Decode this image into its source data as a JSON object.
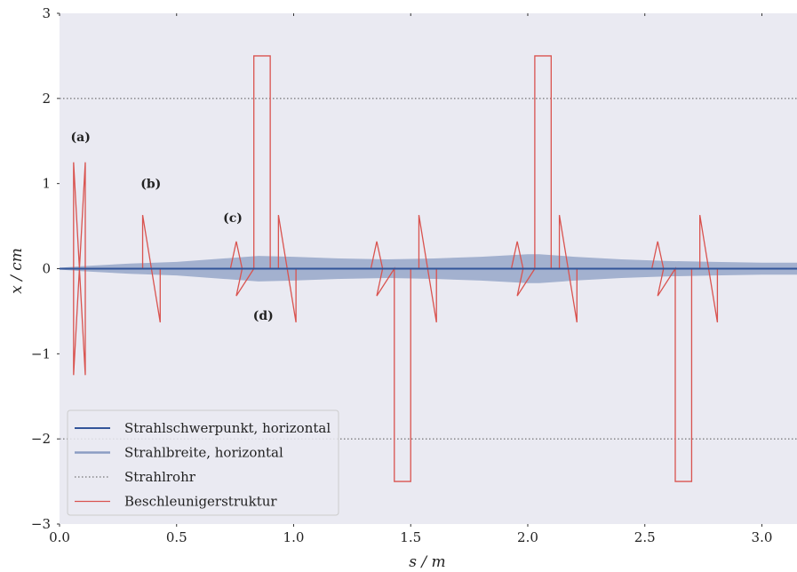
{
  "chart_data": {
    "type": "line",
    "xlabel": "s / m",
    "ylabel": "x / cm",
    "xlim": [
      0.0,
      3.15
    ],
    "ylim": [
      -3,
      3
    ],
    "xticks": [
      0.0,
      0.5,
      1.0,
      1.5,
      2.0,
      2.5,
      3.0
    ],
    "xtick_labels": [
      "0.0",
      "0.5",
      "1.0",
      "1.5",
      "2.0",
      "2.5",
      "3.0"
    ],
    "yticks": [
      -3,
      -2,
      -1,
      0,
      1,
      2,
      3
    ],
    "ytick_labels": [
      "−3",
      "−2",
      "−1",
      "0",
      "1",
      "2",
      "3"
    ],
    "grid": false,
    "background": "#eaeaf2",
    "legend_position": "lower-left",
    "series": [
      {
        "name": "Strahlschwerpunkt, horizontal",
        "kind": "line",
        "color": "#335599",
        "x": [
          0.0,
          3.15
        ],
        "y": [
          0.0,
          0.0
        ]
      },
      {
        "name": "Strahlbreite, horizontal",
        "kind": "band",
        "color": "#8b9dc3",
        "x": [
          0.0,
          0.1,
          0.3,
          0.5,
          0.7,
          0.85,
          1.0,
          1.2,
          1.4,
          1.6,
          1.8,
          2.0,
          2.05,
          2.2,
          2.4,
          2.6,
          2.8,
          3.0,
          3.15
        ],
        "upper": [
          0.01,
          0.03,
          0.06,
          0.08,
          0.12,
          0.15,
          0.14,
          0.12,
          0.11,
          0.12,
          0.14,
          0.17,
          0.17,
          0.14,
          0.11,
          0.09,
          0.08,
          0.07,
          0.07
        ],
        "lower": [
          -0.01,
          -0.03,
          -0.06,
          -0.08,
          -0.12,
          -0.15,
          -0.14,
          -0.12,
          -0.11,
          -0.12,
          -0.14,
          -0.17,
          -0.17,
          -0.14,
          -0.11,
          -0.09,
          -0.08,
          -0.07,
          -0.07
        ]
      },
      {
        "name": "Strahlrohr",
        "kind": "hlines",
        "color": "#555555",
        "y": [
          2,
          -2
        ]
      },
      {
        "name": "Beschleunigerstruktur",
        "kind": "polyline",
        "color": "#d9534f",
        "x": [
          0.0,
          0.06,
          0.06,
          0.11,
          0.11,
          0.06,
          0.06,
          0.11,
          0.11,
          0.355,
          0.355,
          0.43,
          0.43,
          0.755,
          0.73,
          0.755,
          0.78,
          0.755,
          0.83,
          0.83,
          0.9,
          0.9,
          0.935,
          0.935,
          1.01,
          1.01,
          1.355,
          1.33,
          1.355,
          1.38,
          1.355,
          1.43,
          1.43,
          1.5,
          1.5,
          1.535,
          1.535,
          1.61,
          1.61,
          1.955,
          1.93,
          1.955,
          1.98,
          1.955,
          2.03,
          2.03,
          2.1,
          2.1,
          2.135,
          2.135,
          2.21,
          2.21,
          2.555,
          2.53,
          2.555,
          2.58,
          2.555,
          2.63,
          2.63,
          2.7,
          2.7,
          2.735,
          2.735,
          2.81,
          2.81,
          3.15
        ],
        "y": [
          0.0,
          0.0,
          1.25,
          -1.25,
          1.25,
          -1.25,
          0.0,
          0.0,
          0.0,
          0.0,
          0.63,
          -0.63,
          0.0,
          0.0,
          0.0,
          0.32,
          0.0,
          -0.32,
          0.0,
          2.5,
          2.5,
          0.0,
          0.0,
          0.63,
          -0.63,
          0.0,
          0.0,
          0.0,
          0.32,
          0.0,
          -0.32,
          0.0,
          -2.5,
          -2.5,
          0.0,
          0.0,
          0.63,
          -0.63,
          0.0,
          0.0,
          0.0,
          0.32,
          0.0,
          -0.32,
          0.0,
          2.5,
          2.5,
          0.0,
          0.0,
          0.63,
          -0.63,
          0.0,
          0.0,
          0.0,
          0.32,
          0.0,
          -0.32,
          0.0,
          -2.5,
          -2.5,
          0.0,
          0.0,
          0.63,
          -0.63,
          0.0,
          0.0
        ]
      }
    ],
    "annotations": [
      {
        "text": "(a)",
        "x": 0.09,
        "y": 1.55
      },
      {
        "text": "(b)",
        "x": 0.39,
        "y": 1.0
      },
      {
        "text": "(c)",
        "x": 0.74,
        "y": 0.6
      },
      {
        "text": "(d)",
        "x": 0.87,
        "y": -0.55
      }
    ]
  }
}
